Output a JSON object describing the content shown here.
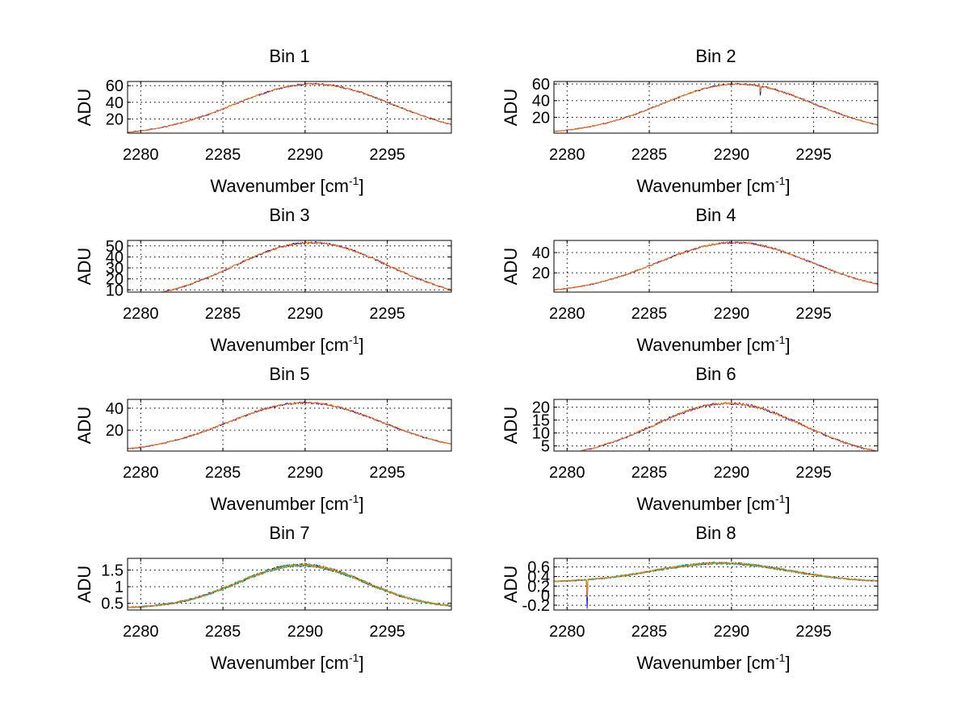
{
  "colors": {
    "background": "#ffffff",
    "axes": "#000000",
    "series": [
      "#0000ff",
      "#008000",
      "#ff0000",
      "#00bfbf",
      "#bf00bf",
      "#bfbf00",
      "#404040",
      "#ff8000"
    ]
  },
  "chart_data": [
    {
      "type": "line",
      "title": "Bin 1",
      "xlabel": "Wavenumber [cm",
      "xlabel_sup": "-1",
      "xlabel_end": "]",
      "ylabel": "ADU",
      "xlim": [
        2279.2,
        2298.9
      ],
      "ylim": [
        3,
        65
      ],
      "xticks": [
        2280,
        2285,
        2290,
        2295
      ],
      "xtick_labels": [
        "2280",
        "2285",
        "2290",
        "2295"
      ],
      "yticks": [
        20,
        40,
        60
      ],
      "ytick_labels": [
        "20",
        "40",
        "60"
      ],
      "grid": true,
      "shape": {
        "center": 2290.5,
        "width": 6.8,
        "peak": 62,
        "base": 0,
        "noise": 1.0
      },
      "series": [
        {
          "color": "#0000ff",
          "seed": 1
        },
        {
          "color": "#ff8000",
          "seed": 2
        }
      ]
    },
    {
      "type": "line",
      "title": "Bin 2",
      "xlabel": "Wavenumber [cm",
      "xlabel_sup": "-1",
      "xlabel_end": "]",
      "ylabel": "ADU",
      "xlim": [
        2279.2,
        2298.9
      ],
      "ylim": [
        1,
        63
      ],
      "xticks": [
        2280,
        2285,
        2290,
        2295
      ],
      "xtick_labels": [
        "2280",
        "2285",
        "2290",
        "2295"
      ],
      "yticks": [
        20,
        40,
        60
      ],
      "ytick_labels": [
        "20",
        "40",
        "60"
      ],
      "grid": true,
      "shape": {
        "center": 2290.4,
        "width": 6.5,
        "peak": 60,
        "base": 0,
        "noise": 1.0
      },
      "spikes": [
        {
          "x": 2291.75,
          "dy": -10
        }
      ],
      "series": [
        {
          "color": "#0000ff",
          "seed": 3
        },
        {
          "color": "#ff8000",
          "seed": 4
        }
      ]
    },
    {
      "type": "line",
      "title": "Bin 3",
      "xlabel": "Wavenumber [cm",
      "xlabel_sup": "-1",
      "xlabel_end": "]",
      "ylabel": "ADU",
      "xlim": [
        2279.2,
        2298.9
      ],
      "ylim": [
        8,
        55
      ],
      "xticks": [
        2280,
        2285,
        2290,
        2295
      ],
      "xtick_labels": [
        "2280",
        "2285",
        "2290",
        "2295"
      ],
      "yticks": [
        10,
        20,
        30,
        40,
        50
      ],
      "ytick_labels": [
        "10",
        "20",
        "30",
        "40",
        "50"
      ],
      "grid": true,
      "shape": {
        "center": 2290.4,
        "width": 6.6,
        "peak": 53,
        "base": 0,
        "noise": 1.0
      },
      "series": [
        {
          "color": "#0000ff",
          "seed": 5
        },
        {
          "color": "#ff8000",
          "seed": 6
        }
      ]
    },
    {
      "type": "line",
      "title": "Bin 4",
      "xlabel": "Wavenumber [cm",
      "xlabel_sup": "-1",
      "xlabel_end": "]",
      "ylabel": "ADU",
      "xlim": [
        2279.2,
        2298.9
      ],
      "ylim": [
        1,
        52
      ],
      "xticks": [
        2280,
        2285,
        2290,
        2295
      ],
      "xtick_labels": [
        "2280",
        "2285",
        "2290",
        "2295"
      ],
      "yticks": [
        20,
        40
      ],
      "ytick_labels": [
        "20",
        "40"
      ],
      "grid": true,
      "shape": {
        "center": 2290.2,
        "width": 6.6,
        "peak": 50,
        "base": 0,
        "noise": 0.9
      },
      "series": [
        {
          "color": "#0000ff",
          "seed": 7
        },
        {
          "color": "#ff8000",
          "seed": 8
        }
      ]
    },
    {
      "type": "line",
      "title": "Bin 5",
      "xlabel": "Wavenumber [cm",
      "xlabel_sup": "-1",
      "xlabel_end": "]",
      "ylabel": "ADU",
      "xlim": [
        2279.2,
        2298.9
      ],
      "ylim": [
        1,
        48
      ],
      "xticks": [
        2280,
        2285,
        2290,
        2295
      ],
      "xtick_labels": [
        "2280",
        "2285",
        "2290",
        "2295"
      ],
      "yticks": [
        20,
        40
      ],
      "ytick_labels": [
        "20",
        "40"
      ],
      "grid": true,
      "shape": {
        "center": 2290.0,
        "width": 6.6,
        "peak": 45,
        "base": 0,
        "noise": 0.9
      },
      "series": [
        {
          "color": "#0000ff",
          "seed": 9
        },
        {
          "color": "#ff8000",
          "seed": 10
        }
      ]
    },
    {
      "type": "line",
      "title": "Bin 6",
      "xlabel": "Wavenumber [cm",
      "xlabel_sup": "-1",
      "xlabel_end": "]",
      "ylabel": "ADU",
      "xlim": [
        2279.2,
        2298.9
      ],
      "ylim": [
        3,
        23
      ],
      "xticks": [
        2280,
        2285,
        2290,
        2295
      ],
      "xtick_labels": [
        "2280",
        "2285",
        "2290",
        "2295"
      ],
      "yticks": [
        5,
        10,
        15,
        20
      ],
      "ytick_labels": [
        "5",
        "10",
        "15",
        "20"
      ],
      "grid": true,
      "shape": {
        "center": 2289.8,
        "width": 6.4,
        "peak": 21.5,
        "base": 0,
        "noise": 0.5
      },
      "series": [
        {
          "color": "#0000ff",
          "seed": 11
        },
        {
          "color": "#ff8000",
          "seed": 12
        }
      ]
    },
    {
      "type": "line",
      "title": "Bin 7",
      "xlabel": "Wavenumber [cm",
      "xlabel_sup": "-1",
      "xlabel_end": "]",
      "ylabel": "ADU",
      "xlim": [
        2279.2,
        2298.9
      ],
      "ylim": [
        0.3,
        1.85
      ],
      "xticks": [
        2280,
        2285,
        2290,
        2295
      ],
      "xtick_labels": [
        "2280",
        "2285",
        "2290",
        "2295"
      ],
      "yticks": [
        0.5,
        1,
        1.5
      ],
      "ytick_labels": [
        "0.5",
        "1",
        "1.5"
      ],
      "grid": true,
      "shape": {
        "center": 2289.8,
        "width": 5.4,
        "peak": 1.3,
        "base": 0.35,
        "noise": 0.05
      },
      "series": [
        {
          "color": "#0000ff",
          "seed": 13
        },
        {
          "color": "#008000",
          "seed": 14
        },
        {
          "color": "#00bfbf",
          "seed": 15
        },
        {
          "color": "#ff8000",
          "seed": 16
        }
      ]
    },
    {
      "type": "line",
      "title": "Bin 8",
      "xlabel": "Wavenumber [cm",
      "xlabel_sup": "-1",
      "xlabel_end": "]",
      "ylabel": "ADU",
      "xlim": [
        2279.2,
        2298.9
      ],
      "ylim": [
        -0.3,
        0.78
      ],
      "xticks": [
        2280,
        2285,
        2290,
        2295
      ],
      "xtick_labels": [
        "2280",
        "2285",
        "2290",
        "2295"
      ],
      "yticks": [
        -0.2,
        0,
        0.2,
        0.4,
        0.6
      ],
      "ytick_labels": [
        "-0.2",
        "0",
        "0.2",
        "0.4",
        "0.6"
      ],
      "grid": true,
      "shape": {
        "center": 2289.4,
        "width": 5.8,
        "peak": 0.4,
        "base": 0.28,
        "noise": 0.025
      },
      "spikes": [
        {
          "x": 2281.2,
          "dy": -0.6
        }
      ],
      "series": [
        {
          "color": "#0000ff",
          "seed": 17
        },
        {
          "color": "#008000",
          "seed": 18
        },
        {
          "color": "#00bfbf",
          "seed": 19
        },
        {
          "color": "#ff8000",
          "seed": 20
        }
      ]
    }
  ]
}
